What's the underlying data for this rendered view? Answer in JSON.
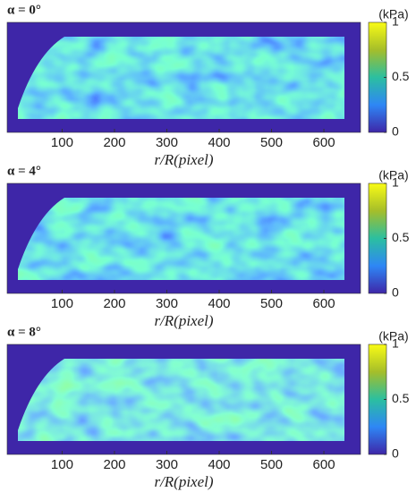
{
  "chart_data": [
    {
      "type": "heatmap",
      "title": "α = 0°",
      "xlabel": "r/R(pixel)",
      "xlim": [
        -5,
        670
      ],
      "xticks": [
        100,
        200,
        300,
        400,
        500,
        600
      ],
      "colorbar": {
        "label": "(kPa)",
        "lim": [
          0,
          1
        ],
        "ticks": [
          0,
          0.5,
          1
        ]
      },
      "colormap": [
        "#3e26a8",
        "#2e87f5",
        "#2bbfa0",
        "#a5be2a",
        "#f9fb15"
      ]
    },
    {
      "type": "heatmap",
      "title": "α = 4°",
      "xlabel": "r/R(pixel)",
      "xlim": [
        -5,
        670
      ],
      "xticks": [
        100,
        200,
        300,
        400,
        500,
        600
      ],
      "colorbar": {
        "label": "(kPa)",
        "lim": [
          0,
          1
        ],
        "ticks": [
          0,
          0.5,
          1
        ]
      },
      "colormap": [
        "#3e26a8",
        "#2e87f5",
        "#2bbfa0",
        "#a5be2a",
        "#f9fb15"
      ]
    },
    {
      "type": "heatmap",
      "title": "α = 8°",
      "xlabel": "r/R(pixel)",
      "xlim": [
        -5,
        670
      ],
      "xticks": [
        100,
        200,
        300,
        400,
        500,
        600
      ],
      "colorbar": {
        "label": "(kPa)",
        "lim": [
          0,
          1
        ],
        "ticks": [
          0,
          0.5,
          1
        ]
      },
      "colormap": [
        "#3e26a8",
        "#2e87f5",
        "#2bbfa0",
        "#a5be2a",
        "#f9fb15"
      ]
    }
  ]
}
